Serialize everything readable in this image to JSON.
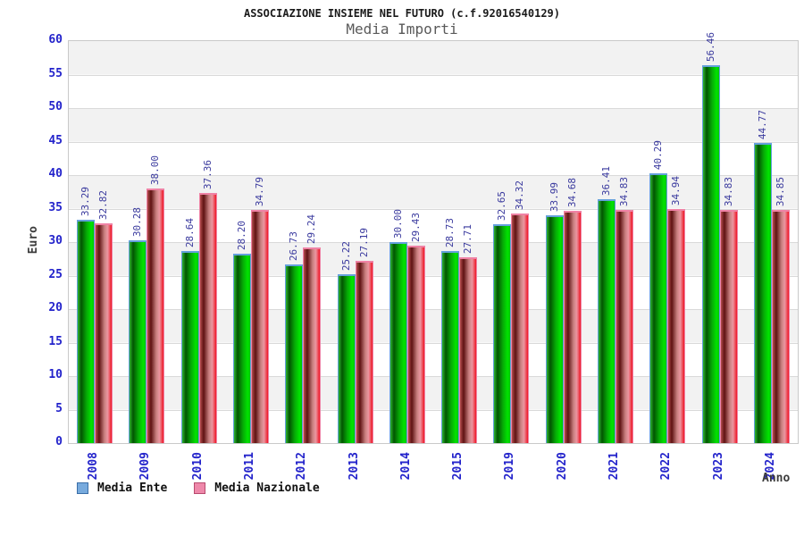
{
  "header": {
    "title": "ASSOCIAZIONE INSIEME NEL FUTURO (c.f.92016540129)",
    "subtitle": "Media Importi"
  },
  "legend": {
    "items": [
      {
        "label": "Media Ente",
        "swatch": "#77aadd",
        "swatch_border": "#3a6ea8"
      },
      {
        "label": "Media Nazionale",
        "swatch": "#ee88aa",
        "swatch_border": "#b84a6e"
      }
    ]
  },
  "chart_data": {
    "type": "bar",
    "title": "ASSOCIAZIONE INSIEME NEL FUTURO (c.f.92016540129)",
    "subtitle": "Media Importi",
    "xlabel": "Anno",
    "ylabel": "Euro",
    "categories": [
      "2008",
      "2009",
      "2010",
      "2011",
      "2012",
      "2013",
      "2014",
      "2015",
      "2019",
      "2020",
      "2021",
      "2022",
      "2023",
      "2024"
    ],
    "series": [
      {
        "name": "Media Ente",
        "values": [
          33.29,
          30.28,
          28.64,
          28.2,
          26.73,
          25.22,
          30.0,
          28.73,
          32.65,
          33.99,
          36.41,
          40.29,
          56.46,
          44.77
        ]
      },
      {
        "name": "Media Nazionale",
        "values": [
          32.82,
          38.0,
          37.36,
          34.79,
          29.24,
          27.19,
          29.43,
          27.71,
          34.32,
          34.68,
          34.83,
          34.94,
          34.83,
          34.85
        ]
      }
    ],
    "ylim": [
      0,
      60
    ],
    "ytick_step": 5,
    "yticks": [
      0,
      5,
      10,
      15,
      20,
      25,
      30,
      35,
      40,
      45,
      50,
      55,
      60
    ],
    "grid": true,
    "band_fill": true,
    "legend_position": "bottom",
    "value_labels": true,
    "value_label_decimals": 2
  },
  "style": {
    "title_color": "#1a1a1a",
    "subtitle_color": "#5a5a5a",
    "tick_label_color": "#2323cb",
    "year_label_color": "#2323cb",
    "value_label_color": "#3a3a9e",
    "axis_title_color": "#3c3c3c",
    "band_color": "#f2f2f2",
    "grid_color": "#d9d9d9",
    "plot_border": "#c9c9c9",
    "bar_green_gradient": "linear-gradient(90deg,#2fb52f 0%,#025402 22%,#06a906 55%,#00e400 85%,#00c300 100%)",
    "bar_green_border": "#64a0dc",
    "bar_red_gradient": "linear-gradient(90deg,#b34d4d 0%,#5e1212 22%,#c87f7f 55%,#eb97a1 75%,#ee1525 100%)",
    "bar_red_border": "#ef82a5"
  }
}
